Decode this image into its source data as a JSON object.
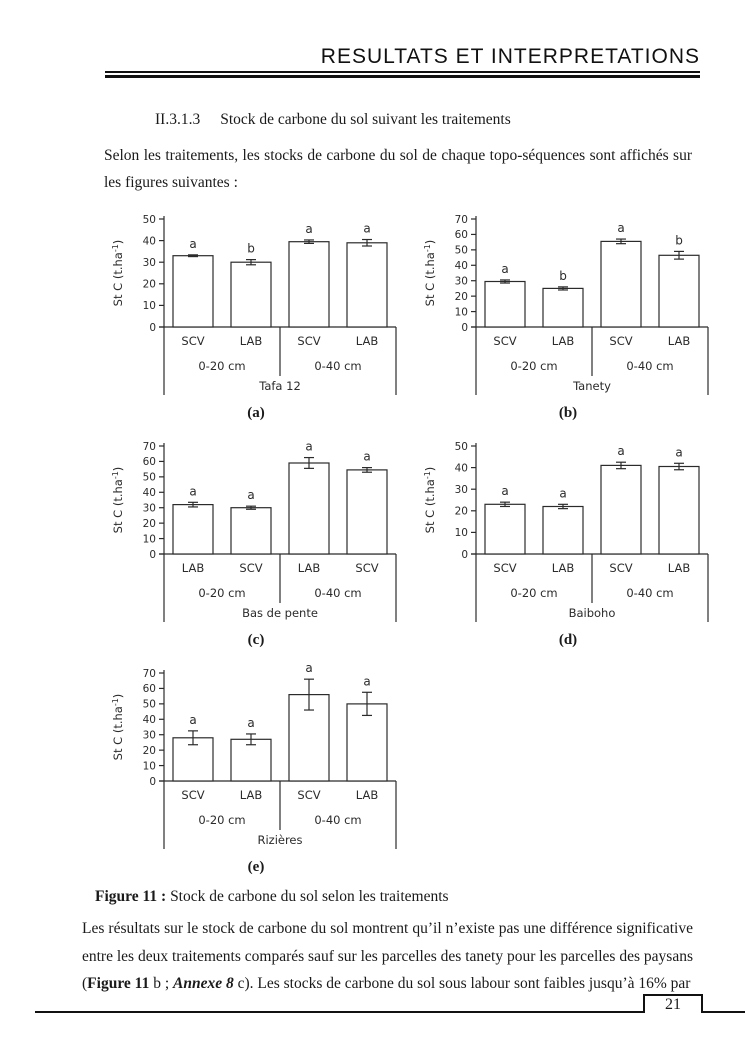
{
  "header": {
    "title": "RESULTATS ET INTERPRETATIONS"
  },
  "section": {
    "number": "II.3.1.3",
    "title": "Stock de carbone du sol suivant les traitements"
  },
  "intro_paragraph": "Selon les traitements, les stocks de carbone du sol de chaque topo-séquences sont affichés sur les figures suivantes :",
  "figure_caption": {
    "label": "Figure 11 :",
    "text": " Stock de carbone du sol selon les traitements"
  },
  "closing_paragraph": {
    "part1": "Les résultats sur le stock de carbone du sol montrent qu’il n’existe pas une différence significative entre les deux traitements comparés sauf sur les parcelles des tanety pour les parcelles des paysans (",
    "bold1": "Figure 11",
    "part2": " b ; ",
    "bold_italic": "Annexe 8",
    "part3": " c). Les stocks de carbone du sol sous labour sont faibles jusqu’à 16% par"
  },
  "footer": {
    "page_number": "21"
  },
  "colors": {
    "ink": "#1a1a1a",
    "bar_fill": "#ffffff",
    "bar_stroke": "#2b2b2b"
  },
  "chart_data": [
    {
      "type": "bar",
      "panel_label": "(a)",
      "site": "Tafa 12",
      "ylabel_main": "St C (t.ha",
      "ylabel_sup": "-1",
      "ylabel_end": ")",
      "ylim": [
        0,
        50
      ],
      "ytick_step": 10,
      "depth_groups": [
        "0-20 cm",
        "0-40 cm"
      ],
      "categories": [
        "SCV",
        "LAB",
        "SCV",
        "LAB"
      ],
      "values": [
        33,
        30,
        39.5,
        39
      ],
      "errors": [
        0.4,
        1.2,
        0.8,
        1.5
      ],
      "sig_letters": [
        "a",
        "b",
        "a",
        "a"
      ]
    },
    {
      "type": "bar",
      "panel_label": "(b)",
      "site": "Tanety",
      "ylabel_main": "St C (t.ha",
      "ylabel_sup": "-1",
      "ylabel_end": ")",
      "ylim": [
        0,
        70
      ],
      "ytick_step": 10,
      "depth_groups": [
        "0-20 cm",
        "0-40 cm"
      ],
      "categories": [
        "SCV",
        "LAB",
        "SCV",
        "LAB"
      ],
      "values": [
        29.5,
        25,
        55.5,
        46.5
      ],
      "errors": [
        1,
        1,
        1.5,
        2.5
      ],
      "sig_letters": [
        "a",
        "b",
        "a",
        "b"
      ]
    },
    {
      "type": "bar",
      "panel_label": "(c)",
      "site": "Bas de pente",
      "ylabel_main": "St C (t.ha",
      "ylabel_sup": "-1",
      "ylabel_end": ")",
      "ylim": [
        0,
        70
      ],
      "ytick_step": 10,
      "depth_groups": [
        "0-20 cm",
        "0-40 cm"
      ],
      "categories": [
        "LAB",
        "SCV",
        "LAB",
        "SCV"
      ],
      "values": [
        32,
        30,
        59,
        54.5
      ],
      "errors": [
        1.5,
        1,
        3.5,
        1.5
      ],
      "sig_letters": [
        "a",
        "a",
        "a",
        "a"
      ]
    },
    {
      "type": "bar",
      "panel_label": "(d)",
      "site": "Baiboho",
      "ylabel_main": "St C (t.ha",
      "ylabel_sup": "-1",
      "ylabel_end": ")",
      "ylim": [
        0,
        50
      ],
      "ytick_step": 10,
      "depth_groups": [
        "0-20 cm",
        "0-40 cm"
      ],
      "categories": [
        "SCV",
        "LAB",
        "SCV",
        "LAB"
      ],
      "values": [
        23,
        22,
        41,
        40.5
      ],
      "errors": [
        1,
        1,
        1.5,
        1.5
      ],
      "sig_letters": [
        "a",
        "a",
        "a",
        "a"
      ]
    },
    {
      "type": "bar",
      "panel_label": "(e)",
      "site": "Rizières",
      "ylabel_main": "St C (t.ha",
      "ylabel_sup": "-1",
      "ylabel_end": ")",
      "ylim": [
        0,
        70
      ],
      "ytick_step": 10,
      "depth_groups": [
        "0-20 cm",
        "0-40 cm"
      ],
      "categories": [
        "SCV",
        "LAB",
        "SCV",
        "LAB"
      ],
      "values": [
        28,
        27,
        56,
        50
      ],
      "errors": [
        4.5,
        3.5,
        10,
        7.5
      ],
      "sig_letters": [
        "a",
        "a",
        "a",
        "a"
      ]
    }
  ]
}
